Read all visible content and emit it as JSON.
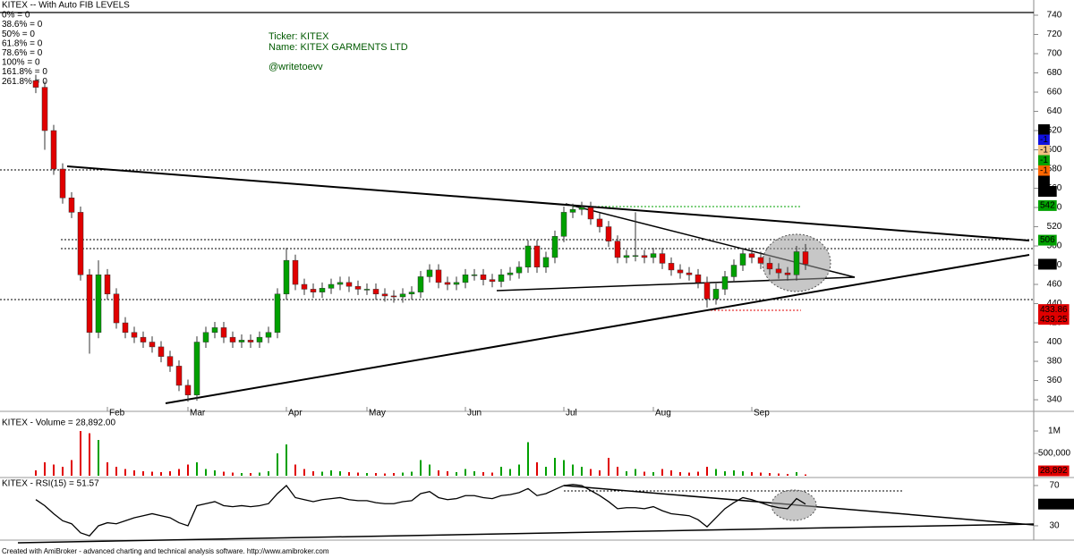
{
  "chart_data": [
    {
      "type": "candlestick",
      "title": "KITEX -- With Auto FIB LEVELS",
      "fib_legend": [
        {
          "label": "0% = 0",
          "color": "#000000"
        },
        {
          "label": "38.6% = 0",
          "color": "#e8602c"
        },
        {
          "label": "50% = 0",
          "color": "#00a000"
        },
        {
          "label": "61.8% = 0",
          "color": "#f0c080"
        },
        {
          "label": "78.6% = 0",
          "color": "#0000d0"
        },
        {
          "label": "100% = 0",
          "color": "#000000"
        },
        {
          "label": "161.8% = 0",
          "color": "#000000"
        },
        {
          "label": "261.8% = 0",
          "color": "#000000"
        }
      ],
      "categories": [
        null,
        null,
        null,
        null,
        null,
        null,
        null,
        null,
        "Feb",
        null,
        null,
        null,
        null,
        null,
        null,
        null,
        null,
        "Mar",
        null,
        null,
        null,
        null,
        null,
        null,
        null,
        null,
        null,
        null,
        "Apr",
        null,
        null,
        null,
        null,
        null,
        null,
        null,
        null,
        "May",
        null,
        null,
        null,
        null,
        null,
        null,
        null,
        null,
        null,
        null,
        "Jun",
        null,
        null,
        null,
        null,
        null,
        null,
        null,
        null,
        null,
        null,
        "Jul",
        null,
        null,
        null,
        null,
        null,
        null,
        null,
        null,
        null,
        "Aug",
        null,
        null,
        null,
        null,
        null,
        null,
        null,
        null,
        null,
        null,
        "Sep",
        null,
        null,
        null,
        null,
        null,
        null
      ],
      "open": [
        672,
        665,
        620,
        580,
        550,
        535,
        470,
        410,
        470,
        450,
        420,
        410,
        405,
        400,
        395,
        385,
        375,
        355,
        345,
        400,
        410,
        415,
        405,
        400,
        402,
        400,
        405,
        410,
        450,
        485,
        460,
        455,
        452,
        456,
        460,
        462,
        458,
        455,
        455,
        450,
        448,
        447,
        450,
        452,
        468,
        475,
        462,
        460,
        462,
        470,
        470,
        465,
        463,
        470,
        472,
        478,
        500,
        478,
        488,
        510,
        535,
        538,
        540,
        528,
        520,
        505,
        488,
        490,
        490,
        488,
        492,
        482,
        475,
        472,
        470,
        462,
        445,
        455,
        468,
        480,
        492,
        488,
        482,
        476,
        472,
        470,
        494
      ],
      "high": [
        678,
        671,
        626,
        586,
        556,
        541,
        476,
        485,
        476,
        456,
        426,
        416,
        411,
        406,
        401,
        391,
        381,
        361,
        406,
        416,
        421,
        421,
        411,
        408,
        408,
        411,
        416,
        456,
        498,
        491,
        466,
        461,
        462,
        466,
        468,
        468,
        464,
        461,
        461,
        456,
        454,
        456,
        458,
        474,
        481,
        481,
        468,
        468,
        476,
        476,
        476,
        471,
        476,
        478,
        484,
        506,
        506,
        494,
        516,
        541,
        544,
        546,
        546,
        534,
        526,
        511,
        496,
        535,
        496,
        498,
        498,
        488,
        481,
        478,
        476,
        468,
        461,
        474,
        486,
        498,
        498,
        494,
        488,
        482,
        478,
        500,
        502
      ],
      "low": [
        659,
        600,
        574,
        544,
        529,
        464,
        388,
        404,
        444,
        414,
        404,
        399,
        394,
        389,
        379,
        369,
        349,
        338,
        339,
        394,
        404,
        399,
        394,
        394,
        394,
        394,
        399,
        404,
        444,
        454,
        449,
        446,
        446,
        450,
        454,
        452,
        449,
        449,
        444,
        442,
        441,
        441,
        444,
        446,
        462,
        456,
        454,
        454,
        456,
        464,
        459,
        457,
        457,
        464,
        466,
        472,
        472,
        472,
        482,
        504,
        529,
        532,
        522,
        514,
        499,
        482,
        482,
        484,
        482,
        482,
        476,
        469,
        466,
        464,
        456,
        436,
        439,
        449,
        462,
        474,
        482,
        476,
        470,
        466,
        464,
        464,
        475
      ],
      "close": [
        665,
        620,
        580,
        550,
        535,
        470,
        410,
        470,
        450,
        420,
        410,
        405,
        400,
        395,
        385,
        375,
        355,
        345,
        400,
        410,
        415,
        405,
        400,
        402,
        400,
        405,
        410,
        450,
        485,
        460,
        455,
        452,
        456,
        460,
        462,
        458,
        455,
        455,
        450,
        448,
        447,
        450,
        452,
        468,
        475,
        462,
        460,
        462,
        470,
        470,
        465,
        463,
        470,
        472,
        478,
        500,
        478,
        488,
        510,
        535,
        538,
        540,
        528,
        520,
        505,
        488,
        490,
        490,
        488,
        492,
        482,
        475,
        472,
        470,
        462,
        445,
        455,
        468,
        480,
        492,
        488,
        482,
        476,
        472,
        470,
        494,
        481
      ],
      "up_color": "#00a000",
      "down_color": "#e00000",
      "ylim": [
        332.6,
        742.8
      ],
      "yticks": [
        340,
        360,
        380,
        400,
        420,
        440,
        460,
        480,
        500,
        520,
        540,
        560,
        580,
        600,
        620,
        640,
        660,
        680,
        700,
        720,
        740
      ],
      "stack_badges": [
        {
          "label": "-1",
          "color": "#000000"
        },
        {
          "label": "-1",
          "color": "#1010e0"
        },
        {
          "label": "-1",
          "color": "#f0c080"
        },
        {
          "label": "-1",
          "color": "#00a000"
        },
        {
          "label": "-1",
          "color": "#ff6600"
        },
        {
          "label": "-1",
          "color": "#000000"
        },
        {
          "label": "481",
          "color": "#000000"
        }
      ],
      "levels": [
        {
          "value": 542,
          "label": "542",
          "color": "#00a000"
        },
        {
          "value": 506,
          "label": "506",
          "color": "#00a000"
        },
        {
          "value": 481,
          "label": "481",
          "color": "#000000"
        },
        {
          "value": 433.86,
          "label": "433.86",
          "color": "#e00000"
        },
        {
          "value": 433.25,
          "label": "433.25",
          "color": "#e00000"
        }
      ]
    },
    {
      "type": "bar",
      "title": "KITEX - Volume = 28,892.00",
      "values": [
        120000,
        300000,
        250000,
        200000,
        350000,
        1000000,
        950000,
        800000,
        300000,
        200000,
        150000,
        120000,
        100000,
        90000,
        80000,
        100000,
        150000,
        250000,
        300000,
        150000,
        120000,
        90000,
        70000,
        60000,
        60000,
        70000,
        100000,
        500000,
        700000,
        250000,
        150000,
        100000,
        90000,
        120000,
        100000,
        80000,
        70000,
        60000,
        60000,
        50000,
        60000,
        70000,
        90000,
        350000,
        250000,
        120000,
        100000,
        80000,
        150000,
        100000,
        80000,
        70000,
        200000,
        150000,
        250000,
        750000,
        300000,
        200000,
        400000,
        350000,
        250000,
        200000,
        150000,
        120000,
        400000,
        200000,
        100000,
        150000,
        90000,
        80000,
        150000,
        120000,
        80000,
        70000,
        90000,
        200000,
        150000,
        100000,
        120000,
        100000,
        80000,
        70000,
        60000,
        50000,
        40000,
        80000,
        28892
      ],
      "last_label": "28,892",
      "last_color": "#e00000",
      "ylim": [
        0,
        1380000
      ],
      "yticks": [
        {
          "value": 500000,
          "label": "500,000"
        },
        {
          "value": 1000000,
          "label": "1M"
        }
      ]
    },
    {
      "type": "line",
      "title": "KITEX - RSI(15) = 51.57",
      "color": "#000000",
      "values": [
        56,
        50,
        42,
        35,
        32,
        23,
        20,
        30,
        33,
        32,
        35,
        38,
        40,
        42,
        40,
        38,
        33,
        30,
        50,
        52,
        54,
        50,
        49,
        50,
        49,
        50,
        52,
        62,
        70,
        58,
        56,
        54,
        56,
        57,
        58,
        56,
        55,
        55,
        53,
        52,
        52,
        54,
        55,
        62,
        64,
        58,
        56,
        57,
        60,
        60,
        58,
        57,
        60,
        61,
        63,
        67,
        60,
        62,
        66,
        70,
        71,
        70,
        65,
        60,
        54,
        47,
        48,
        48,
        47,
        49,
        45,
        42,
        41,
        40,
        36,
        29,
        38,
        47,
        53,
        58,
        56,
        53,
        50,
        48,
        47,
        57,
        51.5701
      ],
      "last_label": "51.5701",
      "last_color": "#000000",
      "ylim": [
        19.3,
        75.3
      ],
      "yticks": [
        30,
        70
      ]
    }
  ],
  "annotations": [
    "Ticker: KITEX",
    "Name: KITEX GARMENTS LTD",
    "@writetoevv"
  ],
  "footer": "Created with AmiBroker - advanced charting and technical analysis software. http://www.amibroker.com"
}
